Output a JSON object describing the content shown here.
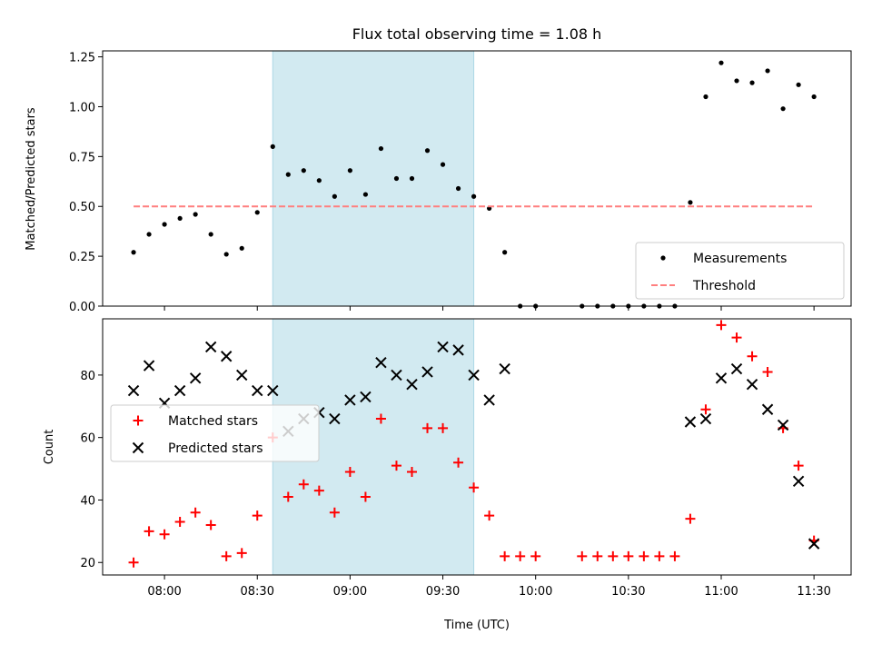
{
  "chart_data": [
    {
      "type": "scatter",
      "title": "Flux total observing time = 1.08 h",
      "xlabel": "",
      "ylabel": "Matched/Predicted stars",
      "ylim": [
        0,
        1.28
      ],
      "yticks": [
        "0.00",
        "0.25",
        "0.50",
        "0.75",
        "1.00",
        "1.25"
      ],
      "shaded_interval": [
        "08:35",
        "09:40"
      ],
      "shade_color": "#add8e6",
      "legend_position": "lower right",
      "series": [
        {
          "name": "Measurements",
          "marker": "dot",
          "color": "#000000",
          "points": [
            [
              "07:50",
              0.27
            ],
            [
              "07:55",
              0.36
            ],
            [
              "08:00",
              0.41
            ],
            [
              "08:05",
              0.44
            ],
            [
              "08:10",
              0.46
            ],
            [
              "08:15",
              0.36
            ],
            [
              "08:20",
              0.26
            ],
            [
              "08:25",
              0.29
            ],
            [
              "08:30",
              0.47
            ],
            [
              "08:35",
              0.8
            ],
            [
              "08:40",
              0.66
            ],
            [
              "08:45",
              0.68
            ],
            [
              "08:50",
              0.63
            ],
            [
              "08:55",
              0.55
            ],
            [
              "09:00",
              0.68
            ],
            [
              "09:05",
              0.56
            ],
            [
              "09:10",
              0.79
            ],
            [
              "09:15",
              0.64
            ],
            [
              "09:20",
              0.64
            ],
            [
              "09:25",
              0.78
            ],
            [
              "09:30",
              0.71
            ],
            [
              "09:35",
              0.59
            ],
            [
              "09:40",
              0.55
            ],
            [
              "09:45",
              0.49
            ],
            [
              "09:50",
              0.27
            ],
            [
              "09:55",
              0.0
            ],
            [
              "10:00",
              0.0
            ],
            [
              "10:15",
              0.0
            ],
            [
              "10:20",
              0.0
            ],
            [
              "10:25",
              0.0
            ],
            [
              "10:30",
              0.0
            ],
            [
              "10:35",
              0.0
            ],
            [
              "10:40",
              0.0
            ],
            [
              "10:45",
              0.0
            ],
            [
              "10:50",
              0.52
            ],
            [
              "10:55",
              1.05
            ],
            [
              "11:00",
              1.22
            ],
            [
              "11:05",
              1.13
            ],
            [
              "11:10",
              1.12
            ],
            [
              "11:15",
              1.18
            ],
            [
              "11:20",
              0.99
            ],
            [
              "11:25",
              1.11
            ],
            [
              "11:30",
              1.05
            ]
          ]
        },
        {
          "name": "Threshold",
          "marker": "dashed-line",
          "color": "#ff7f7f",
          "points": [
            [
              "07:50",
              0.5
            ],
            [
              "11:30",
              0.5
            ]
          ]
        }
      ]
    },
    {
      "type": "scatter",
      "title": "",
      "xlabel": "Time (UTC)",
      "ylabel": "Count",
      "ylim": [
        16,
        98
      ],
      "yticks": [
        "20",
        "40",
        "60",
        "80"
      ],
      "xticks": [
        "08:00",
        "08:30",
        "09:00",
        "09:30",
        "10:00",
        "10:30",
        "11:00",
        "11:30"
      ],
      "xlim": [
        "07:40",
        "11:42"
      ],
      "shaded_interval": [
        "08:35",
        "09:40"
      ],
      "shade_color": "#add8e6",
      "legend_position": "center left",
      "series": [
        {
          "name": "Matched stars",
          "marker": "plus",
          "color": "#ff0000",
          "points": [
            [
              "07:50",
              20
            ],
            [
              "07:55",
              30
            ],
            [
              "08:00",
              29
            ],
            [
              "08:05",
              33
            ],
            [
              "08:10",
              36
            ],
            [
              "08:15",
              32
            ],
            [
              "08:20",
              22
            ],
            [
              "08:25",
              23
            ],
            [
              "08:30",
              35
            ],
            [
              "08:35",
              60
            ],
            [
              "08:40",
              41
            ],
            [
              "08:45",
              45
            ],
            [
              "08:50",
              43
            ],
            [
              "08:55",
              36
            ],
            [
              "09:00",
              49
            ],
            [
              "09:05",
              41
            ],
            [
              "09:10",
              66
            ],
            [
              "09:15",
              51
            ],
            [
              "09:20",
              49
            ],
            [
              "09:25",
              63
            ],
            [
              "09:30",
              63
            ],
            [
              "09:35",
              52
            ],
            [
              "09:40",
              44
            ],
            [
              "09:45",
              35
            ],
            [
              "09:50",
              22
            ],
            [
              "09:55",
              22
            ],
            [
              "10:00",
              22
            ],
            [
              "10:15",
              22
            ],
            [
              "10:20",
              22
            ],
            [
              "10:25",
              22
            ],
            [
              "10:30",
              22
            ],
            [
              "10:35",
              22
            ],
            [
              "10:40",
              22
            ],
            [
              "10:45",
              22
            ],
            [
              "10:50",
              34
            ],
            [
              "10:55",
              69
            ],
            [
              "11:00",
              96
            ],
            [
              "11:05",
              92
            ],
            [
              "11:10",
              86
            ],
            [
              "11:15",
              81
            ],
            [
              "11:20",
              63
            ],
            [
              "11:25",
              51
            ],
            [
              "11:30",
              27
            ]
          ]
        },
        {
          "name": "Predicted stars",
          "marker": "x",
          "color": "#000000",
          "points": [
            [
              "07:50",
              75
            ],
            [
              "07:55",
              83
            ],
            [
              "08:00",
              71
            ],
            [
              "08:05",
              75
            ],
            [
              "08:10",
              79
            ],
            [
              "08:15",
              89
            ],
            [
              "08:20",
              86
            ],
            [
              "08:25",
              80
            ],
            [
              "08:30",
              75
            ],
            [
              "08:35",
              75
            ],
            [
              "08:40",
              62
            ],
            [
              "08:45",
              66
            ],
            [
              "08:50",
              68
            ],
            [
              "08:55",
              66
            ],
            [
              "09:00",
              72
            ],
            [
              "09:05",
              73
            ],
            [
              "09:10",
              84
            ],
            [
              "09:15",
              80
            ],
            [
              "09:20",
              77
            ],
            [
              "09:25",
              81
            ],
            [
              "09:30",
              89
            ],
            [
              "09:35",
              88
            ],
            [
              "09:40",
              80
            ],
            [
              "09:45",
              72
            ],
            [
              "09:50",
              82
            ],
            [
              "10:50",
              65
            ],
            [
              "10:55",
              66
            ],
            [
              "11:00",
              79
            ],
            [
              "11:05",
              82
            ],
            [
              "11:10",
              77
            ],
            [
              "11:15",
              69
            ],
            [
              "11:20",
              64
            ],
            [
              "11:25",
              46
            ],
            [
              "11:30",
              26
            ]
          ]
        }
      ]
    }
  ]
}
